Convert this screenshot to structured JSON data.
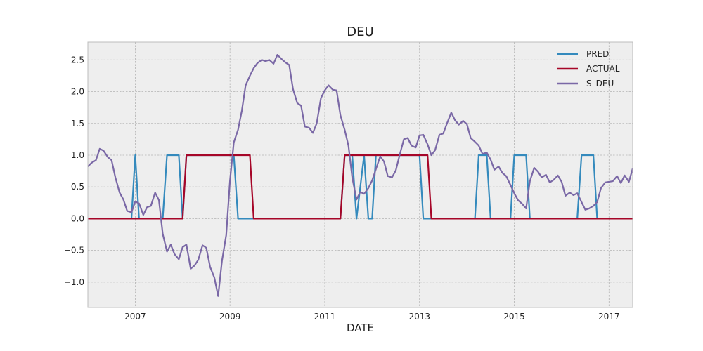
{
  "chart_data": {
    "type": "line",
    "title": "DEU",
    "xlabel": "DATE",
    "ylabel": "",
    "xlim": [
      2006.0,
      2017.5
    ],
    "ylim": [
      -1.4,
      2.78
    ],
    "x_ticks": [
      2007,
      2009,
      2011,
      2013,
      2015,
      2017
    ],
    "x_tick_labels": [
      "2007",
      "2009",
      "2011",
      "2013",
      "2015",
      "2017"
    ],
    "y_ticks": [
      -1.0,
      -0.5,
      0.0,
      0.5,
      1.0,
      1.5,
      2.0,
      2.5
    ],
    "y_tick_labels": [
      "−1.0",
      "−0.5",
      "0.0",
      "0.5",
      "1.0",
      "1.5",
      "2.0",
      "2.5"
    ],
    "grid": true,
    "legend_position": "top-right",
    "series": [
      {
        "name": "PRED",
        "color": "#348abd",
        "x": [
          2006.0,
          2006.92,
          2007.0,
          2007.08,
          2007.58,
          2007.67,
          2007.92,
          2008.0,
          2008.08,
          2008.17,
          2009.08,
          2009.17,
          2009.25,
          2009.42,
          2009.5,
          2011.33,
          2011.42,
          2011.58,
          2011.67,
          2011.83,
          2011.92,
          2012.0,
          2012.08,
          2012.17,
          2013.0,
          2013.08,
          2013.17,
          2014.17,
          2014.25,
          2014.42,
          2014.5,
          2014.92,
          2015.0,
          2015.25,
          2015.33,
          2016.33,
          2016.42,
          2016.67,
          2016.75,
          2017.5
        ],
        "y": [
          0,
          0,
          1,
          0,
          0,
          1,
          1,
          0,
          1,
          1,
          1,
          0,
          0,
          0,
          0,
          0,
          1,
          1,
          0,
          1,
          0,
          0,
          1,
          1,
          1,
          0,
          0,
          0,
          1,
          1,
          0,
          0,
          1,
          1,
          0,
          0,
          1,
          1,
          0,
          0
        ]
      },
      {
        "name": "ACTUAL",
        "color": "#a60628",
        "x": [
          2006.0,
          2008.0,
          2008.08,
          2009.42,
          2009.5,
          2011.33,
          2011.42,
          2013.17,
          2013.25,
          2017.5
        ],
        "y": [
          0,
          0,
          1,
          1,
          0,
          0,
          1,
          1,
          0,
          0
        ]
      },
      {
        "name": "S_DEU",
        "color": "#7a68a6",
        "x": [
          2006.0,
          2006.08,
          2006.17,
          2006.25,
          2006.33,
          2006.42,
          2006.5,
          2006.58,
          2006.67,
          2006.75,
          2006.83,
          2006.92,
          2007.0,
          2007.08,
          2007.17,
          2007.25,
          2007.33,
          2007.42,
          2007.5,
          2007.58,
          2007.67,
          2007.75,
          2007.83,
          2007.92,
          2008.0,
          2008.08,
          2008.17,
          2008.25,
          2008.33,
          2008.42,
          2008.5,
          2008.58,
          2008.67,
          2008.75,
          2008.83,
          2008.92,
          2009.0,
          2009.08,
          2009.17,
          2009.25,
          2009.33,
          2009.42,
          2009.5,
          2009.58,
          2009.67,
          2009.75,
          2009.83,
          2009.92,
          2010.0,
          2010.08,
          2010.17,
          2010.25,
          2010.33,
          2010.42,
          2010.5,
          2010.58,
          2010.67,
          2010.75,
          2010.83,
          2010.92,
          2011.0,
          2011.08,
          2011.17,
          2011.25,
          2011.33,
          2011.42,
          2011.5,
          2011.58,
          2011.67,
          2011.75,
          2011.83,
          2011.92,
          2012.0,
          2012.08,
          2012.17,
          2012.25,
          2012.33,
          2012.42,
          2012.5,
          2012.58,
          2012.67,
          2012.75,
          2012.83,
          2012.92,
          2013.0,
          2013.08,
          2013.17,
          2013.25,
          2013.33,
          2013.42,
          2013.5,
          2013.58,
          2013.67,
          2013.75,
          2013.83,
          2013.92,
          2014.0,
          2014.08,
          2014.17,
          2014.25,
          2014.33,
          2014.42,
          2014.5,
          2014.58,
          2014.67,
          2014.75,
          2014.83,
          2014.92,
          2015.0,
          2015.08,
          2015.17,
          2015.25,
          2015.33,
          2015.42,
          2015.5,
          2015.58,
          2015.67,
          2015.75,
          2015.83,
          2015.92,
          2016.0,
          2016.08,
          2016.17,
          2016.25,
          2016.33,
          2016.42,
          2016.5,
          2016.58,
          2016.67,
          2016.75,
          2016.83,
          2016.92,
          2017.0,
          2017.08,
          2017.17,
          2017.25,
          2017.33,
          2017.42,
          2017.5
        ],
        "y": [
          0.82,
          0.88,
          0.92,
          1.1,
          1.07,
          0.97,
          0.92,
          0.65,
          0.41,
          0.3,
          0.12,
          0.1,
          0.27,
          0.24,
          0.06,
          0.18,
          0.2,
          0.41,
          0.29,
          -0.24,
          -0.52,
          -0.41,
          -0.56,
          -0.64,
          -0.45,
          -0.41,
          -0.79,
          -0.74,
          -0.65,
          -0.42,
          -0.46,
          -0.76,
          -0.93,
          -1.22,
          -0.67,
          -0.26,
          0.6,
          1.2,
          1.4,
          1.7,
          2.1,
          2.25,
          2.37,
          2.45,
          2.5,
          2.48,
          2.5,
          2.44,
          2.58,
          2.52,
          2.46,
          2.42,
          2.04,
          1.82,
          1.78,
          1.45,
          1.43,
          1.35,
          1.5,
          1.9,
          2.02,
          2.1,
          2.03,
          2.02,
          1.63,
          1.4,
          1.15,
          0.65,
          0.3,
          0.42,
          0.39,
          0.48,
          0.6,
          0.78,
          0.98,
          0.9,
          0.67,
          0.65,
          0.76,
          1.0,
          1.25,
          1.27,
          1.15,
          1.12,
          1.31,
          1.32,
          1.17,
          1.0,
          1.08,
          1.32,
          1.34,
          1.5,
          1.67,
          1.55,
          1.48,
          1.54,
          1.49,
          1.27,
          1.21,
          1.15,
          1.02,
          1.04,
          0.93,
          0.77,
          0.82,
          0.72,
          0.67,
          0.53,
          0.4,
          0.29,
          0.23,
          0.16,
          0.59,
          0.8,
          0.74,
          0.65,
          0.69,
          0.57,
          0.61,
          0.68,
          0.58,
          0.36,
          0.41,
          0.37,
          0.4,
          0.26,
          0.14,
          0.16,
          0.2,
          0.26,
          0.48,
          0.57,
          0.58,
          0.59,
          0.67,
          0.56,
          0.68,
          0.58,
          0.79
        ]
      }
    ]
  }
}
